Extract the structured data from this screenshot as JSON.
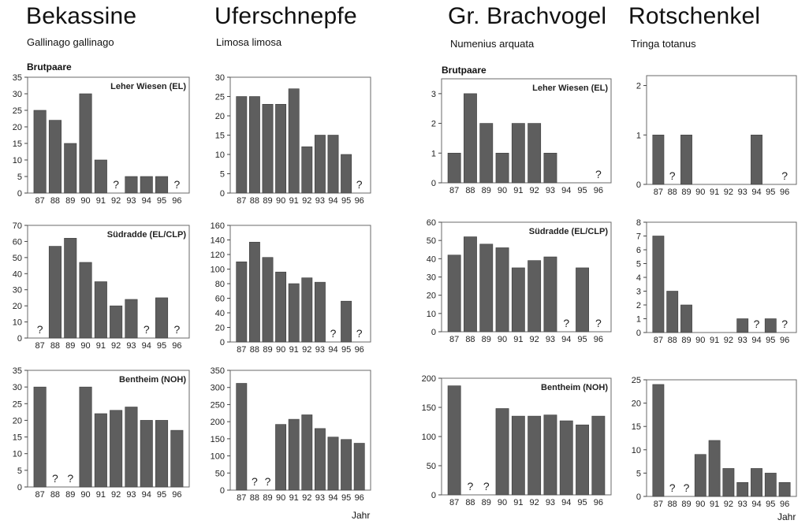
{
  "species": [
    {
      "name": "Bekassine",
      "latin": "Gallinago gallinago"
    },
    {
      "name": "Uferschnepfe",
      "latin": "Limosa limosa"
    },
    {
      "name": "Gr. Brachvogel",
      "latin": "Numenius arquata"
    },
    {
      "name": "Rotschenkel",
      "latin": "Tringa totanus"
    }
  ],
  "y_unit_label": "Brutpaare",
  "x_unit_label": "Jahr",
  "sites": [
    "Leher Wiesen (EL)",
    "Südradde (EL/CLP)",
    "Bentheim (NOH)"
  ],
  "chart_data": [
    {
      "type": "bar",
      "species": "Bekassine",
      "site": "Leher Wiesen (EL)",
      "categories": [
        "87",
        "88",
        "89",
        "90",
        "91",
        "92",
        "93",
        "94",
        "95",
        "96"
      ],
      "values": [
        25,
        22,
        15,
        30,
        10,
        null,
        5,
        5,
        5,
        null
      ],
      "unknown": [
        "92",
        "96"
      ],
      "yticks": [
        0,
        5,
        10,
        15,
        20,
        25,
        30,
        35
      ],
      "ylim": [
        0,
        35
      ]
    },
    {
      "type": "bar",
      "species": "Uferschnepfe",
      "site": "Leher Wiesen (EL)",
      "categories": [
        "87",
        "88",
        "89",
        "90",
        "91",
        "92",
        "93",
        "94",
        "95",
        "96"
      ],
      "values": [
        25,
        25,
        23,
        23,
        27,
        12,
        15,
        15,
        10,
        null
      ],
      "unknown": [
        "96"
      ],
      "yticks": [
        0,
        5,
        10,
        15,
        20,
        25,
        30
      ],
      "ylim": [
        0,
        30
      ]
    },
    {
      "type": "bar",
      "species": "Gr. Brachvogel",
      "site": "Leher Wiesen (EL)",
      "categories": [
        "87",
        "88",
        "89",
        "90",
        "91",
        "92",
        "93",
        "94",
        "95",
        "96"
      ],
      "values": [
        1,
        3,
        2,
        1,
        2,
        2,
        1,
        0,
        0,
        null
      ],
      "unknown": [
        "96"
      ],
      "yticks": [
        0,
        1,
        2,
        3
      ],
      "ylim": [
        0,
        3.5
      ]
    },
    {
      "type": "bar",
      "species": "Rotschenkel",
      "site": "Leher Wiesen (EL)",
      "categories": [
        "87",
        "88",
        "89",
        "90",
        "91",
        "92",
        "93",
        "94",
        "95",
        "96"
      ],
      "values": [
        1,
        null,
        1,
        0,
        0,
        0,
        0,
        1,
        0,
        null
      ],
      "unknown": [
        "88",
        "96"
      ],
      "yticks": [
        0,
        1,
        2
      ],
      "ylim": [
        0,
        2.2
      ]
    },
    {
      "type": "bar",
      "species": "Bekassine",
      "site": "Südradde (EL/CLP)",
      "categories": [
        "87",
        "88",
        "89",
        "90",
        "91",
        "92",
        "93",
        "94",
        "95",
        "96"
      ],
      "values": [
        null,
        57,
        62,
        47,
        35,
        20,
        24,
        null,
        25,
        null
      ],
      "unknown": [
        "87",
        "94",
        "96"
      ],
      "yticks": [
        0,
        10,
        20,
        30,
        40,
        50,
        60,
        70
      ],
      "ylim": [
        0,
        70
      ]
    },
    {
      "type": "bar",
      "species": "Uferschnepfe",
      "site": "Südradde (EL/CLP)",
      "categories": [
        "87",
        "88",
        "89",
        "90",
        "91",
        "92",
        "93",
        "94",
        "95",
        "96"
      ],
      "values": [
        110,
        137,
        116,
        96,
        80,
        88,
        82,
        null,
        56,
        null
      ],
      "unknown": [
        "94",
        "96"
      ],
      "yticks": [
        0,
        20,
        40,
        60,
        80,
        100,
        120,
        140,
        160
      ],
      "ylim": [
        0,
        160
      ]
    },
    {
      "type": "bar",
      "species": "Gr. Brachvogel",
      "site": "Südradde (EL/CLP)",
      "categories": [
        "87",
        "88",
        "89",
        "90",
        "91",
        "92",
        "93",
        "94",
        "95",
        "96"
      ],
      "values": [
        42,
        52,
        48,
        46,
        35,
        39,
        41,
        null,
        35,
        null
      ],
      "unknown": [
        "94",
        "96"
      ],
      "yticks": [
        0,
        10,
        20,
        30,
        40,
        50,
        60
      ],
      "ylim": [
        0,
        60
      ]
    },
    {
      "type": "bar",
      "species": "Rotschenkel",
      "site": "Südradde (EL/CLP)",
      "categories": [
        "87",
        "88",
        "89",
        "90",
        "91",
        "92",
        "93",
        "94",
        "95",
        "96"
      ],
      "values": [
        7,
        3,
        2,
        0,
        0,
        0,
        1,
        null,
        1,
        null
      ],
      "unknown": [
        "94",
        "96"
      ],
      "yticks": [
        0,
        1,
        2,
        3,
        4,
        5,
        6,
        7,
        8
      ],
      "ylim": [
        0,
        8
      ]
    },
    {
      "type": "bar",
      "species": "Bekassine",
      "site": "Bentheim (NOH)",
      "categories": [
        "87",
        "88",
        "89",
        "90",
        "91",
        "92",
        "93",
        "94",
        "95",
        "96"
      ],
      "values": [
        30,
        null,
        null,
        30,
        22,
        23,
        24,
        20,
        20,
        17
      ],
      "unknown": [
        "88",
        "89"
      ],
      "yticks": [
        0,
        5,
        10,
        15,
        20,
        25,
        30,
        35
      ],
      "ylim": [
        0,
        35
      ]
    },
    {
      "type": "bar",
      "species": "Uferschnepfe",
      "site": "Bentheim (NOH)",
      "categories": [
        "87",
        "88",
        "89",
        "90",
        "91",
        "92",
        "93",
        "94",
        "95",
        "96"
      ],
      "values": [
        312,
        null,
        null,
        192,
        207,
        220,
        180,
        155,
        148,
        137
      ],
      "unknown": [
        "88",
        "89"
      ],
      "yticks": [
        0,
        50,
        100,
        150,
        200,
        250,
        300,
        350
      ],
      "ylim": [
        0,
        350
      ]
    },
    {
      "type": "bar",
      "species": "Gr. Brachvogel",
      "site": "Bentheim (NOH)",
      "categories": [
        "87",
        "88",
        "89",
        "90",
        "91",
        "92",
        "93",
        "94",
        "95",
        "96"
      ],
      "values": [
        187,
        null,
        null,
        148,
        135,
        135,
        137,
        127,
        120,
        135
      ],
      "unknown": [
        "88",
        "89"
      ],
      "yticks": [
        0,
        50,
        100,
        150,
        200
      ],
      "ylim": [
        0,
        200
      ]
    },
    {
      "type": "bar",
      "species": "Rotschenkel",
      "site": "Bentheim (NOH)",
      "categories": [
        "87",
        "88",
        "89",
        "90",
        "91",
        "92",
        "93",
        "94",
        "95",
        "96"
      ],
      "values": [
        24,
        null,
        null,
        9,
        12,
        6,
        3,
        6,
        5,
        3
      ],
      "unknown": [
        "88",
        "89"
      ],
      "yticks": [
        0,
        5,
        10,
        15,
        20,
        25
      ],
      "ylim": [
        0,
        25
      ]
    }
  ]
}
